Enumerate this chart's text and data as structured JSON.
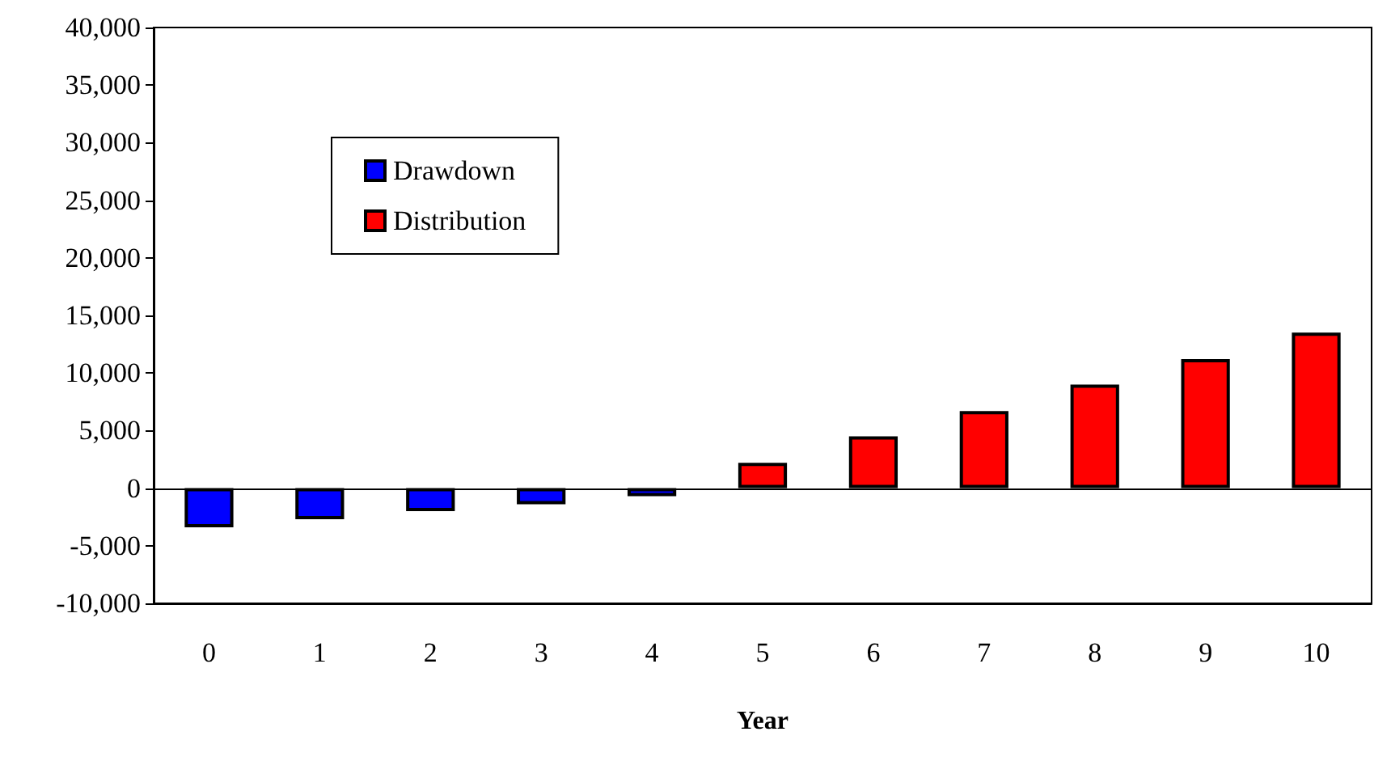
{
  "chart_data": {
    "type": "bar",
    "xlabel": "Year",
    "categories": [
      "0",
      "1",
      "2",
      "3",
      "4",
      "5",
      "6",
      "7",
      "8",
      "9",
      "10"
    ],
    "series": [
      {
        "name": "Drawdown",
        "color": "#0000ff",
        "values": [
          -3400,
          -2700,
          -2000,
          -1400,
          -700,
          null,
          null,
          null,
          null,
          null,
          null
        ]
      },
      {
        "name": "Distribution",
        "color": "#ff0000",
        "values": [
          null,
          null,
          null,
          null,
          null,
          2200,
          4500,
          6700,
          9000,
          11200,
          13500
        ]
      }
    ],
    "stacked": true,
    "ylim": [
      -10000,
      40000
    ],
    "yticks": [
      {
        "value": -10000,
        "label": "-10,000"
      },
      {
        "value": -5000,
        "label": "-5,000"
      },
      0,
      {
        "value": 5000,
        "label": "5,000"
      },
      {
        "value": 10000,
        "label": "10,000"
      },
      {
        "value": 15000,
        "label": "15,000"
      },
      {
        "value": 20000,
        "label": "20,000"
      },
      {
        "value": 25000,
        "label": "25,000"
      },
      {
        "value": 30000,
        "label": "30,000"
      },
      {
        "value": 35000,
        "label": "35,000"
      },
      {
        "value": 40000,
        "label": "40,000"
      }
    ],
    "ref_lines": [
      {
        "axis": "y",
        "value": 0,
        "color": "#000000"
      }
    ],
    "legend": "top left"
  }
}
